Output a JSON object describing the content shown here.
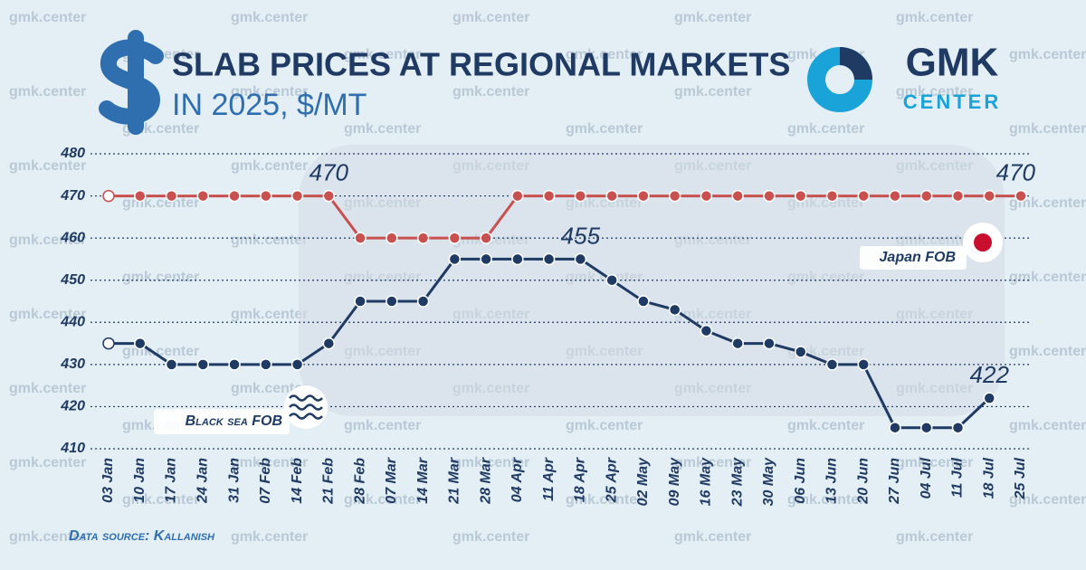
{
  "chart_data": {
    "type": "line",
    "title": "SLAB PRICES AT REGIONAL MARKETS",
    "subtitle": "IN 2025, $/MT",
    "logo": {
      "top": "GMK",
      "bottom": "CENTER"
    },
    "watermark": "gmk.center",
    "source": "Data source: Kallanish",
    "categories": [
      "03 Jan",
      "10 Jan",
      "17 Jan",
      "24 Jan",
      "31 Jan",
      "07 Feb",
      "14 Feb",
      "21 Feb",
      "28 Feb",
      "07 Mar",
      "14 Mar",
      "21 Mar",
      "28 Mar",
      "04 Apr",
      "11 Apr",
      "18 Apr",
      "25 Apr",
      "02 May",
      "09 May",
      "16 May",
      "23 May",
      "30 May",
      "06 Jun",
      "13 Jun",
      "20 Jun",
      "27 Jun",
      "04 Jul",
      "11 Jul",
      "18 Jul",
      "25 Jul"
    ],
    "series": [
      {
        "name": "Japan FOB",
        "color": "#c8504f",
        "values": [
          470,
          470,
          470,
          470,
          470,
          470,
          470,
          470,
          460,
          460,
          460,
          460,
          460,
          470,
          470,
          470,
          470,
          470,
          470,
          470,
          470,
          470,
          470,
          470,
          470,
          470,
          470,
          470,
          470,
          470
        ],
        "value_labels": [
          null,
          null,
          null,
          null,
          null,
          null,
          null,
          "470",
          null,
          null,
          null,
          null,
          null,
          null,
          null,
          null,
          null,
          null,
          null,
          null,
          null,
          null,
          null,
          null,
          null,
          null,
          null,
          null,
          null,
          "470"
        ]
      },
      {
        "name": "Black sea FOB",
        "color": "#1f3a63",
        "values": [
          435,
          435,
          430,
          430,
          430,
          430,
          430,
          435,
          445,
          445,
          445,
          455,
          455,
          455,
          455,
          455,
          450,
          445,
          443,
          438,
          435,
          435,
          433,
          430,
          430,
          415,
          415,
          415,
          422,
          null
        ],
        "value_labels": [
          null,
          null,
          null,
          null,
          null,
          null,
          null,
          null,
          null,
          null,
          null,
          null,
          null,
          null,
          null,
          "455",
          null,
          null,
          null,
          null,
          null,
          null,
          null,
          null,
          null,
          null,
          null,
          null,
          "422",
          null
        ]
      }
    ],
    "ylim": [
      410,
      480
    ],
    "yticks": [
      410,
      420,
      430,
      440,
      450,
      460,
      470,
      480
    ],
    "grid": true
  }
}
